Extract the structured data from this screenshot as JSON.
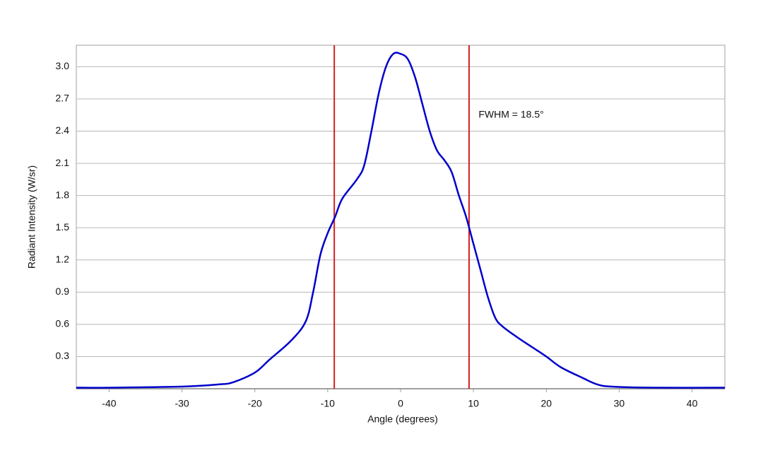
{
  "chart_data": {
    "type": "line",
    "xlabel": "Angle (degrees)",
    "ylabel": "Radiant Intensity (W/sr)",
    "x": [
      -44.5,
      -40,
      -30,
      -25,
      -23,
      -20,
      -18,
      -15,
      -13,
      -12,
      -11,
      -10,
      -9,
      -8,
      -6,
      -5,
      -4,
      -3,
      -2,
      -1,
      0,
      1,
      2,
      3,
      4,
      5,
      6,
      7,
      8,
      9,
      10,
      11,
      12,
      13,
      14,
      16,
      18,
      20,
      22,
      25,
      27,
      29,
      35,
      44.5
    ],
    "series": [
      {
        "color": "#0000cc",
        "values": [
          0.01,
          0.01,
          0.02,
          0.04,
          0.06,
          0.15,
          0.27,
          0.45,
          0.63,
          0.9,
          1.25,
          1.45,
          1.6,
          1.77,
          1.95,
          2.08,
          2.4,
          2.75,
          3.0,
          3.12,
          3.12,
          3.07,
          2.9,
          2.65,
          2.4,
          2.22,
          2.13,
          2.02,
          1.8,
          1.6,
          1.35,
          1.1,
          0.85,
          0.66,
          0.58,
          0.48,
          0.39,
          0.3,
          0.2,
          0.1,
          0.04,
          0.02,
          0.01,
          0.01
        ]
      }
    ],
    "vlines": {
      "color": "#d42020",
      "values": [
        -9.1,
        9.4
      ]
    },
    "annotation": {
      "text": "FWHM = 18.5°",
      "x": 10.7,
      "y": 2.55
    },
    "xlim": [
      -44.5,
      44.5
    ],
    "ylim": [
      0,
      3.2
    ],
    "xticks": [
      -40,
      -30,
      -20,
      -10,
      0,
      10,
      20,
      30,
      40
    ],
    "yticks": [
      0.3,
      0.6,
      0.9,
      1.2,
      1.5,
      1.8,
      2.1,
      2.4,
      2.7,
      {
        "value": 3,
        "label": "3.0"
      }
    ],
    "grid": true
  }
}
